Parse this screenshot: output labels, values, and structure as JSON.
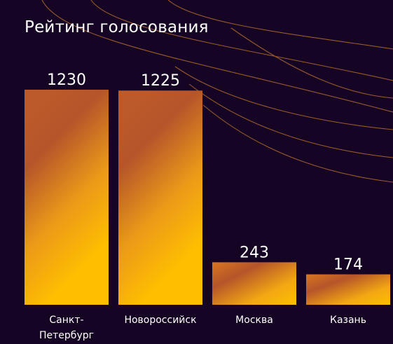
{
  "chart_data": {
    "type": "bar",
    "title": "Рейтинг голосования",
    "categories": [
      "Санкт-Петербург",
      "Новороссийск",
      "Москва",
      "Казань"
    ],
    "category_lines": [
      [
        "Санкт-",
        "Петербург"
      ],
      [
        "Новороссийск"
      ],
      [
        "Москва"
      ],
      [
        "Казань"
      ]
    ],
    "values": [
      1230,
      1225,
      243,
      174
    ],
    "value_labels": [
      "1230",
      "1225",
      "243",
      "174"
    ],
    "xlabel": "",
    "ylabel": "",
    "ylim": [
      0,
      1230
    ],
    "grid": false,
    "legend": "none",
    "colors": {
      "background": "#150423",
      "bar_top": "#b5552a",
      "bar_mid": "#e08a1c",
      "bar_bottom": "#ffbe00",
      "decor_line": "#9a5a2c",
      "text": "#ffffff"
    }
  }
}
